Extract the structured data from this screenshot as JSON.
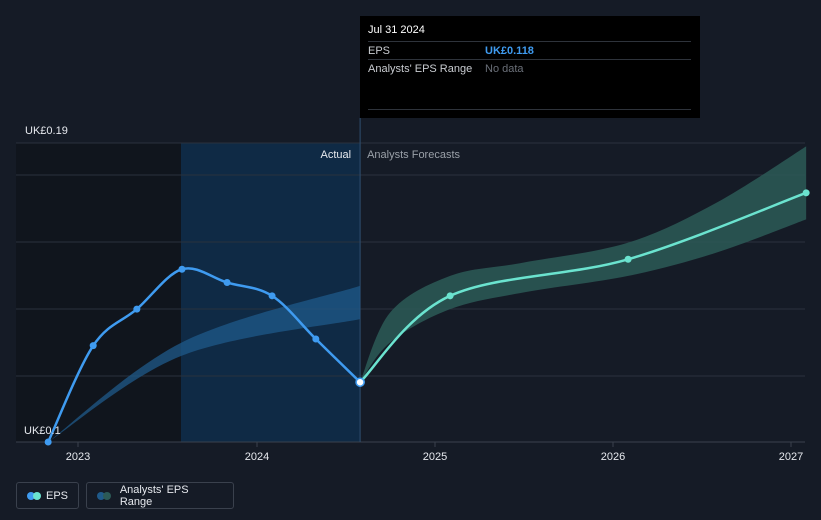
{
  "tooltip": {
    "date": "Jul 31 2024",
    "eps_label": "EPS",
    "eps_value": "UK£0.118",
    "range_label": "Analysts' EPS Range",
    "range_value": "No data"
  },
  "legend": {
    "eps_label": "EPS",
    "range_label": "Analysts' EPS Range"
  },
  "colors": {
    "background": "#151b26",
    "actual_region": "#0f2a45",
    "eps_line": "#3f9bf0",
    "forecast_line": "#6be3cf",
    "forecast_band": "#2c5a57",
    "past_band": "#1f5a8a"
  },
  "chart_data": {
    "type": "line",
    "y_top_label": "UK£0.19",
    "y_bottom_label": "UK£0.1",
    "ylim": [
      0.1,
      0.19
    ],
    "x_ticks": [
      "2023",
      "2024",
      "2025",
      "2026",
      "2027"
    ],
    "region_labels": {
      "actual": "Actual",
      "forecast": "Analysts Forecasts"
    },
    "grid": true,
    "series": [
      {
        "name": "EPS",
        "points": [
          [
            "2022-11-01",
            0.1
          ],
          [
            "2023-02-01",
            0.129
          ],
          [
            "2023-05-01",
            0.14
          ],
          [
            "2023-08-01",
            0.152
          ],
          [
            "2023-11-01",
            0.148
          ],
          [
            "2024-02-01",
            0.144
          ],
          [
            "2024-05-01",
            0.131
          ],
          [
            "2024-07-31",
            0.118
          ]
        ]
      },
      {
        "name": "Analysts' EPS Range (forecast)",
        "points": [
          [
            "2024-07-31",
            0.118
          ],
          [
            "2025-02-01",
            0.144
          ],
          [
            "2026-02-01",
            0.155
          ],
          [
            "2027-02-01",
            0.175
          ]
        ],
        "band_low": [
          [
            "2024-07-31",
            0.118
          ],
          [
            "2024-10-01",
            0.13
          ],
          [
            "2025-02-01",
            0.14
          ],
          [
            "2025-07-01",
            0.145
          ],
          [
            "2026-02-01",
            0.15
          ],
          [
            "2026-08-01",
            0.157
          ],
          [
            "2027-02-01",
            0.167
          ]
        ],
        "band_high": [
          [
            "2024-07-31",
            0.118
          ],
          [
            "2024-10-01",
            0.139
          ],
          [
            "2025-02-01",
            0.15
          ],
          [
            "2025-07-01",
            0.154
          ],
          [
            "2026-02-01",
            0.16
          ],
          [
            "2026-08-01",
            0.172
          ],
          [
            "2027-02-01",
            0.189
          ]
        ]
      }
    ],
    "past_band": {
      "low": [
        [
          "2022-11-01",
          0.1
        ],
        [
          "2023-08-01",
          0.126
        ],
        [
          "2024-07-31",
          0.137
        ]
      ],
      "high": [
        [
          "2022-11-01",
          0.1
        ],
        [
          "2023-08-01",
          0.13
        ],
        [
          "2024-07-31",
          0.147
        ]
      ]
    }
  }
}
